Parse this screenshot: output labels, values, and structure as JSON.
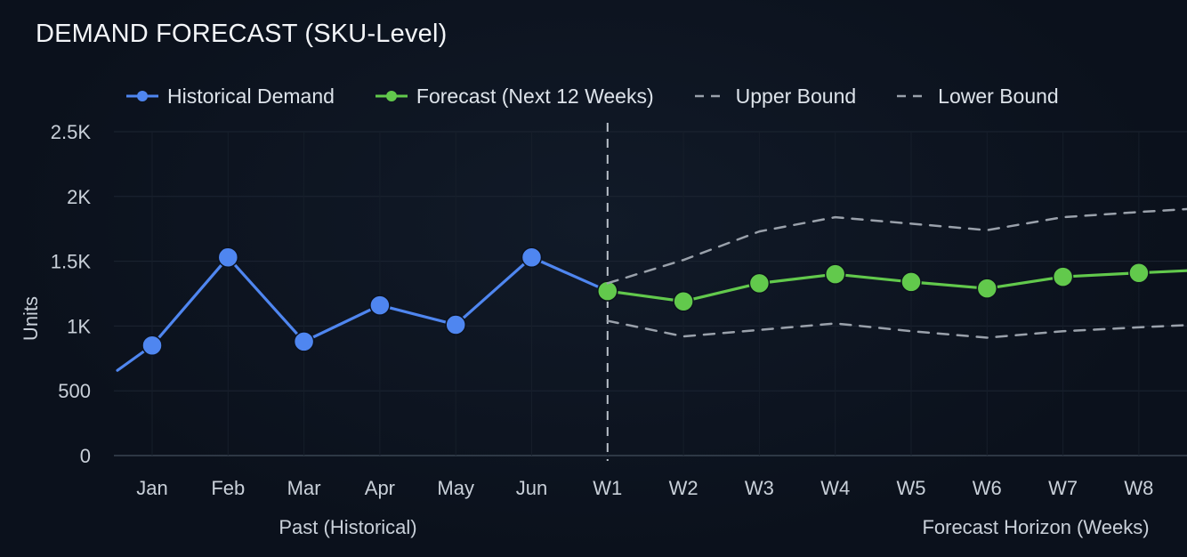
{
  "chart_data": {
    "type": "line",
    "title": "DEMAND FORECAST (SKU-Level)",
    "ylabel": "Units",
    "ylim": [
      0,
      2500
    ],
    "yticks": [
      {
        "value": 0,
        "label": "0"
      },
      {
        "value": 500,
        "label": "500"
      },
      {
        "value": 1000,
        "label": "1K"
      },
      {
        "value": 1500,
        "label": "1.5K"
      },
      {
        "value": 2000,
        "label": "2K"
      },
      {
        "value": 2500,
        "label": "2.5K"
      }
    ],
    "categories": [
      "Jan",
      "Feb",
      "Mar",
      "Apr",
      "May",
      "Jun",
      "W1",
      "W2",
      "W3",
      "W4",
      "W5",
      "W6",
      "W7",
      "W8"
    ],
    "group_labels": {
      "past": "Past (Historical)",
      "forecast": "Forecast Horizon (Weeks)"
    },
    "grid": true,
    "legend_position": "top",
    "series": [
      {
        "name": "Historical Demand",
        "color": "#4f86f0",
        "style": "solid-markers",
        "values": [
          850,
          1530,
          880,
          1160,
          1010,
          1530,
          1270,
          null,
          null,
          null,
          null,
          null,
          null,
          null
        ]
      },
      {
        "name": "Forecast (Next 12 Weeks)",
        "color": "#62c94c",
        "style": "solid-markers",
        "values": [
          null,
          null,
          null,
          null,
          null,
          null,
          1270,
          1190,
          1330,
          1400,
          1340,
          1290,
          1380,
          1410
        ]
      },
      {
        "name": "Upper Bound",
        "color": "#9aa1ab",
        "style": "dashed",
        "values": [
          null,
          null,
          null,
          null,
          null,
          null,
          1330,
          1510,
          1730,
          1840,
          1790,
          1740,
          1840,
          1880
        ]
      },
      {
        "name": "Lower Bound",
        "color": "#9aa1ab",
        "style": "dashed",
        "values": [
          null,
          null,
          null,
          null,
          null,
          null,
          1040,
          920,
          970,
          1020,
          960,
          910,
          960,
          990
        ]
      }
    ],
    "divider_at": "W1"
  }
}
